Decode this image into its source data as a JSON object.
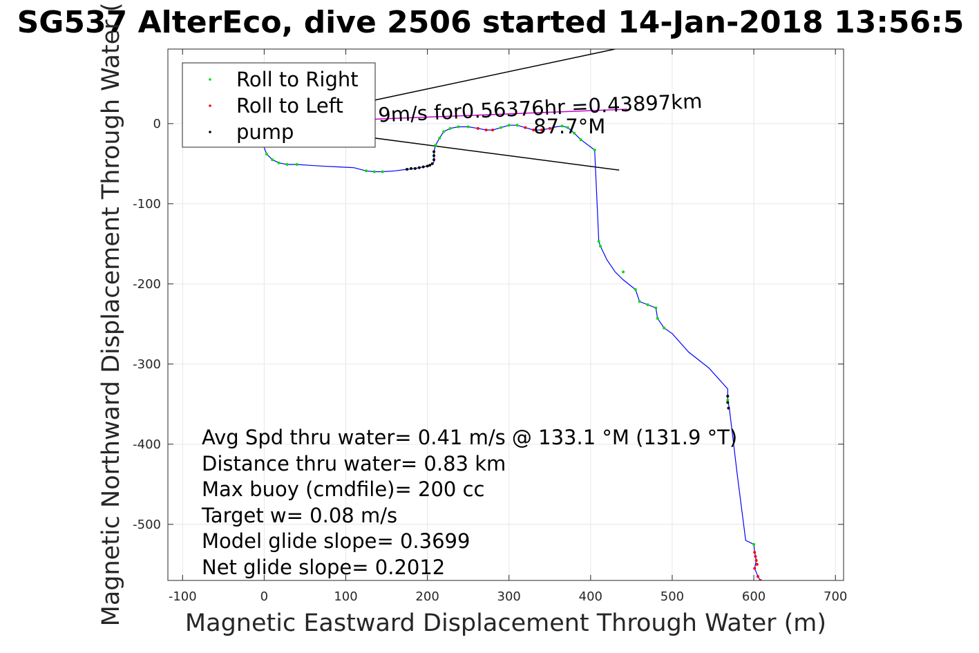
{
  "chart_data": {
    "type": "line",
    "title": "SG537 AlterEco, dive 2506 started 14-Jan-2018 13:56:5",
    "xlabel": "Magnetic Eastward Displacement Through Water (m)",
    "ylabel": "Magnetic Northward Displacement Through Water (",
    "xlim": [
      -118,
      710
    ],
    "ylim": [
      -570,
      93
    ],
    "xticks": [
      -100,
      0,
      100,
      200,
      300,
      400,
      500,
      600,
      700
    ],
    "xtick_labels": [
      "-100",
      "0",
      "100",
      "200",
      "300",
      "400",
      "500",
      "600",
      "700"
    ],
    "yticks": [
      0,
      -100,
      -200,
      -300,
      -400,
      -500
    ],
    "ytick_labels": [
      "0",
      "-100",
      "-200",
      "-300",
      "-400",
      "-500"
    ],
    "grid": true,
    "legend": {
      "position": "top-left",
      "entries": [
        {
          "label": "Roll to Right",
          "color": "#00dd00"
        },
        {
          "label": "Roll to Left",
          "color": "#ff0000"
        },
        {
          "label": "pump",
          "color": "#000000"
        }
      ]
    },
    "track": {
      "name": "track",
      "color": "#0000ff",
      "x": [
        0,
        3,
        10,
        18,
        28,
        40,
        55,
        70,
        90,
        110,
        125,
        135,
        145,
        160,
        175,
        185,
        195,
        203,
        208,
        208,
        210,
        215,
        220,
        228,
        238,
        250,
        262,
        272,
        280,
        290,
        300,
        310,
        320,
        330,
        340,
        350,
        358,
        365,
        372,
        380,
        388,
        405,
        410,
        412,
        420,
        430,
        440,
        455,
        460,
        470,
        480,
        482,
        490,
        500,
        520,
        545,
        568,
        568,
        570,
        580,
        590,
        600,
        601,
        603,
        601,
        605,
        608
      ],
      "y": [
        -30,
        -38,
        -45,
        -49,
        -51,
        -51,
        -52,
        -53,
        -54,
        -55,
        -59,
        -60,
        -60,
        -59,
        -57,
        -56,
        -54,
        -52,
        -48,
        -35,
        -27,
        -18,
        -10,
        -6,
        -4,
        -4,
        -6,
        -8,
        -8,
        -5,
        -2,
        -2,
        -5,
        -8,
        -8,
        -6,
        -4,
        -3,
        -5,
        -12,
        -20,
        -33,
        -147,
        -153,
        -170,
        -185,
        -195,
        -207,
        -222,
        -226,
        -230,
        -243,
        -255,
        -262,
        -285,
        -305,
        -331,
        -345,
        -355,
        -440,
        -520,
        -525,
        -535,
        -545,
        -555,
        -565,
        -570
      ]
    },
    "roll_right_points": {
      "name": "Roll to Right",
      "color": "#00dd00",
      "x": [
        3,
        10,
        18,
        28,
        40,
        125,
        135,
        145,
        210,
        215,
        220,
        228,
        238,
        250,
        290,
        300,
        310,
        365,
        372,
        380,
        388,
        405,
        410,
        412,
        440,
        455,
        460,
        470,
        480,
        482,
        490,
        568,
        600
      ],
      "y": [
        -38,
        -45,
        -49,
        -51,
        -51,
        -59,
        -60,
        -60,
        -27,
        -18,
        -10,
        -6,
        -4,
        -4,
        -5,
        -2,
        -2,
        -3,
        -5,
        -12,
        -20,
        -33,
        -147,
        -153,
        -185,
        -207,
        -222,
        -226,
        -230,
        -243,
        -255,
        -345,
        -525
      ]
    },
    "roll_left_points": {
      "name": "Roll to Left",
      "color": "#ff0000",
      "x": [
        262,
        272,
        280,
        320,
        330,
        340,
        350,
        601,
        603,
        601,
        605,
        608,
        602,
        604
      ],
      "y": [
        -6,
        -8,
        -8,
        -5,
        -8,
        -8,
        -6,
        -535,
        -545,
        -555,
        -565,
        -570,
        -540,
        -550
      ]
    },
    "pump_points": {
      "name": "pump",
      "color": "#000000",
      "x": [
        175,
        180,
        185,
        190,
        195,
        200,
        203,
        206,
        208,
        208,
        208,
        568,
        568,
        569
      ],
      "y": [
        -57,
        -56,
        -56,
        -55,
        -54,
        -53,
        -52,
        -50,
        -45,
        -40,
        -35,
        -340,
        -348,
        -355
      ]
    },
    "current_vectors": {
      "average_current": {
        "from": [
          0,
          0
        ],
        "to": [
          430,
          93
        ],
        "color": "#000000"
      },
      "heading_line": {
        "from": [
          0,
          0
        ],
        "to": [
          435,
          -58
        ],
        "color": "#000000"
      },
      "depth_avg_current": {
        "from": [
          0,
          0
        ],
        "to": [
          445,
          18
        ],
        "color": "#cc00cc"
      }
    },
    "annotations": [
      {
        "text": "9m/s for0.56376hr =0.43897km",
        "x": 140,
        "y": 2
      },
      {
        "text": "87.7°M",
        "x": 330,
        "y": -12
      }
    ],
    "stats_text": [
      "Avg Spd thru water=  0.41 m/s @ 133.1 °M (131.9 °T)",
      "Distance thru water=  0.83 km",
      "Max buoy (cmdfile)= 200 cc",
      "Target w= 0.08 m/s",
      "Model glide slope= 0.3699",
      "Net glide slope= 0.2012"
    ]
  }
}
